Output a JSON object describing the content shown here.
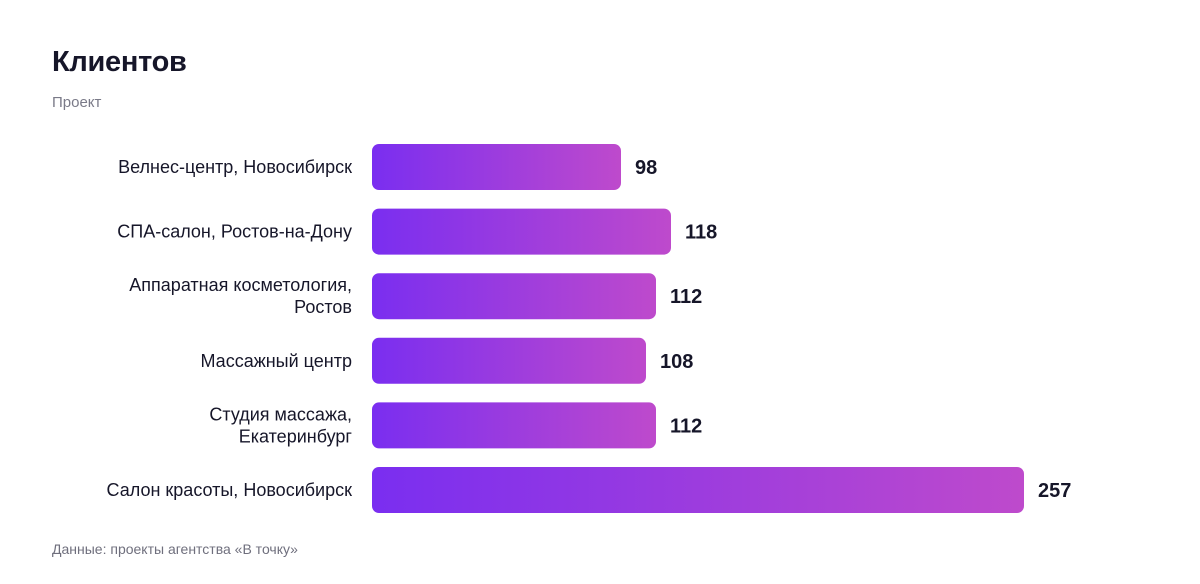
{
  "header": {
    "title": "Клиентов",
    "subtitle": "Проект"
  },
  "footer": {
    "source": "Данные: проекты агентства «В точку»"
  },
  "colors": {
    "bar_start": "#7A2EF0",
    "bar_end": "#BE4ACC",
    "label": "#161629",
    "value": "#161629"
  },
  "chart_data": {
    "type": "bar",
    "orientation": "horizontal",
    "title": "Клиентов",
    "subtitle": "Проект",
    "categories": [
      "Велнес-центр, Новосибирск",
      "СПА-салон, Ростов-на-Дону",
      "Аппаратная косметология, Ростов",
      "Массажный центр",
      "Студия массажа, Екатеринбург",
      "Салон красоты, Новосибирск"
    ],
    "values": [
      98,
      118,
      112,
      108,
      112,
      257
    ],
    "data_labels": [
      "98",
      "118",
      "112",
      "108",
      "112",
      "257"
    ],
    "xlim": [
      0,
      257
    ],
    "grid": false,
    "legend": "none"
  }
}
